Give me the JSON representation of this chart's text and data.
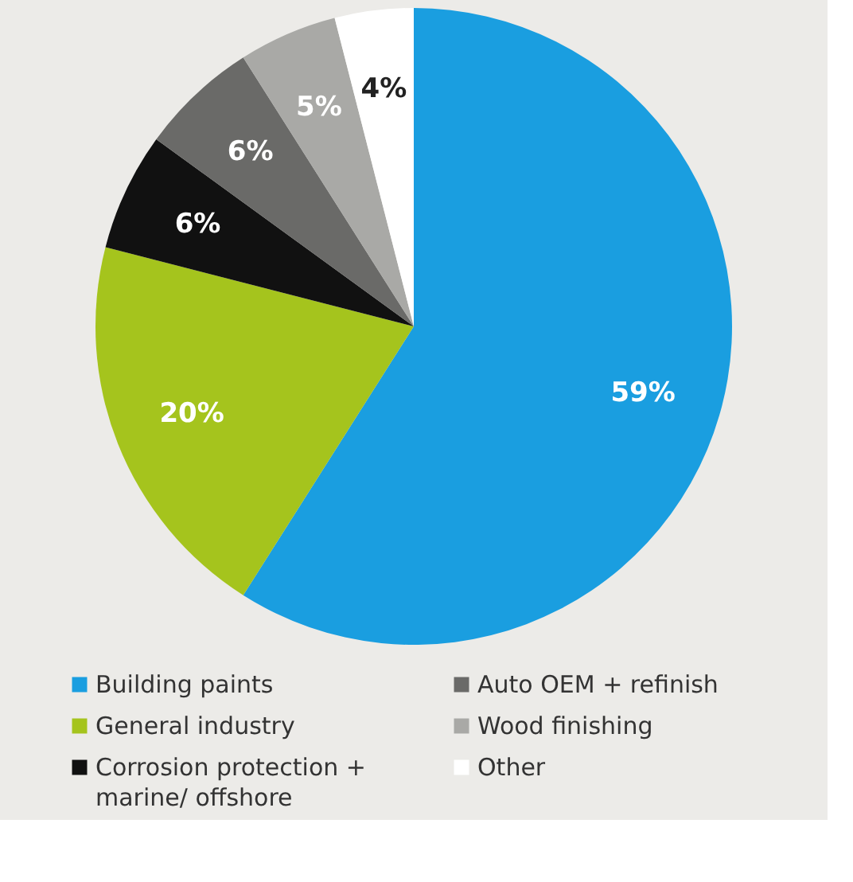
{
  "chart_data": {
    "type": "pie",
    "categories": [
      "Building paints",
      "General industry",
      "Corrosion protection + marine/ offshore",
      "Auto OEM + refinish",
      "Wood finishing",
      "Other"
    ],
    "values": [
      59,
      20,
      6,
      6,
      5,
      4
    ],
    "colors": [
      "#1a9ee0",
      "#a5c41d",
      "#111111",
      "#6a6a68",
      "#a9a9a6",
      "#ffffff"
    ],
    "value_labels": [
      "59%",
      "20%",
      "6%",
      "6%",
      "5%",
      "4%"
    ],
    "legend": "bottom"
  }
}
